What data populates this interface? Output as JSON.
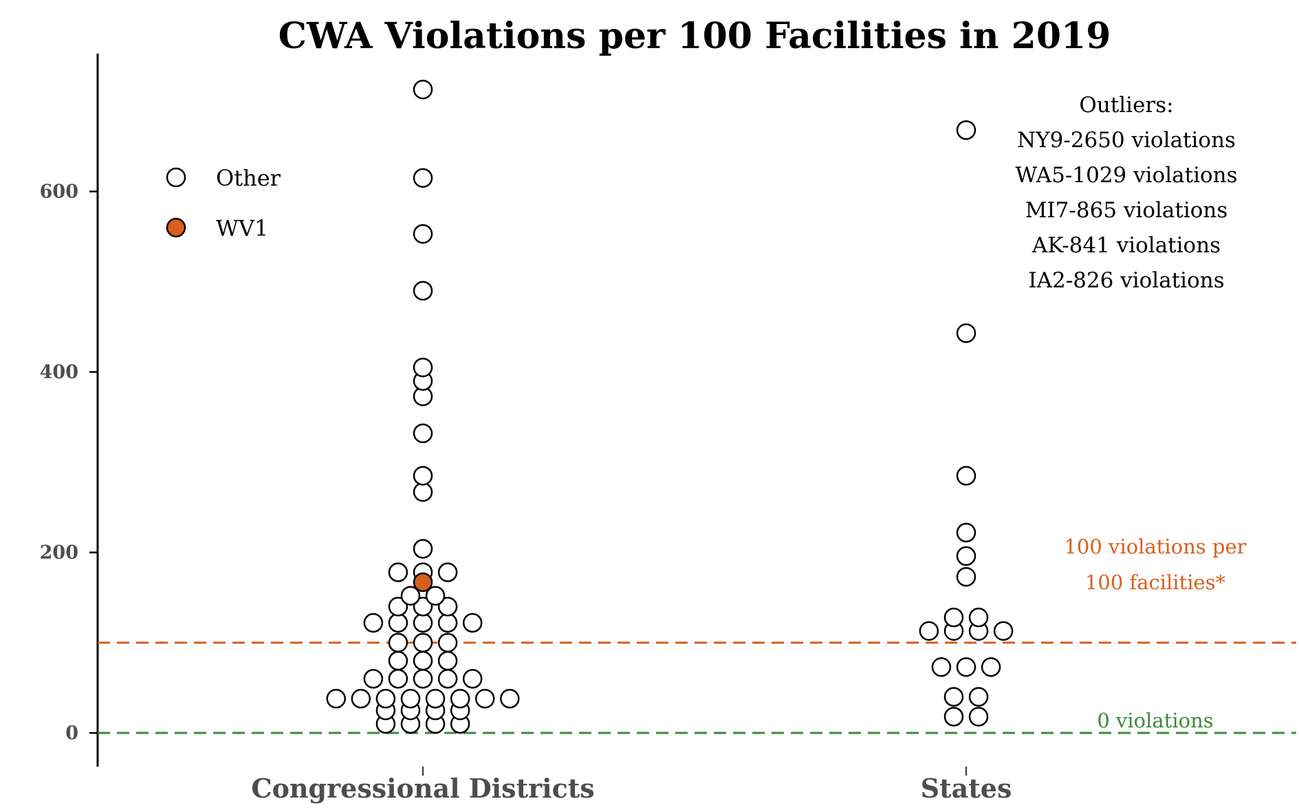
{
  "chart_data": {
    "type": "scatter",
    "title": "CWA Violations per 100 Facilities in 2019",
    "xlabel": "",
    "ylabel": "",
    "categories": [
      "Congressional Districts",
      "States"
    ],
    "ylim": [
      -45,
      760
    ],
    "yticks": [
      0,
      200,
      400,
      600
    ],
    "ytick_labels": [
      "0",
      "200",
      "400",
      "600"
    ],
    "grid": false,
    "legend_position": "top-left",
    "legend": [
      {
        "label": "Other",
        "color": "#ffffff"
      },
      {
        "label": "WV1",
        "color": "#d95f1c"
      }
    ],
    "series": [
      {
        "name": "Other",
        "category": "Congressional Districts",
        "values": [
          10,
          10,
          10,
          10,
          25,
          25,
          25,
          25,
          38,
          38,
          38,
          38,
          38,
          38,
          38,
          38,
          60,
          60,
          60,
          60,
          60,
          80,
          80,
          80,
          100,
          100,
          100,
          122,
          122,
          122,
          122,
          122,
          140,
          140,
          140,
          152,
          152,
          178,
          178,
          178,
          204,
          267,
          285,
          332,
          373,
          390,
          405,
          490,
          553,
          615,
          713
        ]
      },
      {
        "name": "WV1",
        "category": "Congressional Districts",
        "values": [
          167
        ]
      },
      {
        "name": "Other",
        "category": "States",
        "values": [
          18,
          18,
          40,
          40,
          73,
          73,
          73,
          113,
          113,
          113,
          113,
          128,
          128,
          173,
          196,
          222,
          285,
          443,
          668
        ]
      }
    ],
    "reference_lines": [
      {
        "value": 100,
        "label_lines": [
          "100 violations per",
          "100 facilities*"
        ],
        "color": "#d95f1c"
      },
      {
        "value": 0,
        "label_lines": [
          "0 violations"
        ],
        "color": "#3a8a3a"
      }
    ],
    "annotation": {
      "title": "Outliers:",
      "lines": [
        "NY9-2650 violations",
        "WA5-1029 violations",
        "MI7-865 violations",
        "AK-841 violations",
        "IA2-826 violations"
      ]
    }
  }
}
